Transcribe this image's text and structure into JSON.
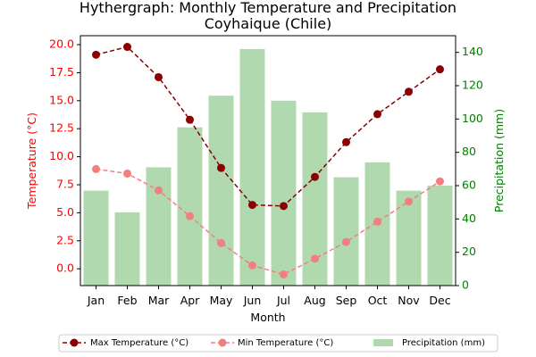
{
  "chart_data": {
    "type": "bar+line",
    "title": "Hythergraph: Monthly Temperature and Precipitation",
    "subtitle": "Coyhaique (Chile)",
    "xlabel": "Month",
    "ylabel_left": "Temperature (°C)",
    "ylabel_right": "Precipitation (mm)",
    "categories": [
      "Jan",
      "Feb",
      "Mar",
      "Apr",
      "May",
      "Jun",
      "Jul",
      "Aug",
      "Sep",
      "Oct",
      "Nov",
      "Dec"
    ],
    "ylim_left": [
      -1.5,
      20.8
    ],
    "ylim_right": [
      0,
      150
    ],
    "yticks_left": [
      "0.0",
      "2.5",
      "5.0",
      "7.5",
      "10.0",
      "12.5",
      "15.0",
      "17.5",
      "20.0"
    ],
    "yticks_right": [
      "0",
      "20",
      "40",
      "60",
      "80",
      "100",
      "120",
      "140"
    ],
    "series": [
      {
        "name": "Max Temperature (°C)",
        "kind": "line",
        "axis": "left",
        "color": "#8b0000",
        "style": "dashed",
        "marker": "circle",
        "values": [
          19.1,
          19.8,
          17.1,
          13.3,
          9.0,
          5.7,
          5.6,
          8.2,
          11.3,
          13.8,
          15.8,
          17.8
        ]
      },
      {
        "name": "Min Temperature (°C)",
        "kind": "line",
        "axis": "left",
        "color": "#f08080",
        "style": "dashed",
        "marker": "circle",
        "values": [
          8.9,
          8.5,
          7.0,
          4.7,
          2.3,
          0.3,
          -0.5,
          0.9,
          2.4,
          4.2,
          6.0,
          7.8
        ]
      },
      {
        "name": "Precipitation (mm)",
        "kind": "bar",
        "axis": "right",
        "color": "#b0d9b0",
        "values": [
          57,
          44,
          71,
          95,
          114,
          142,
          111,
          104,
          65,
          74,
          57,
          60
        ]
      }
    ],
    "legend_position": "bottom",
    "grid": false
  }
}
